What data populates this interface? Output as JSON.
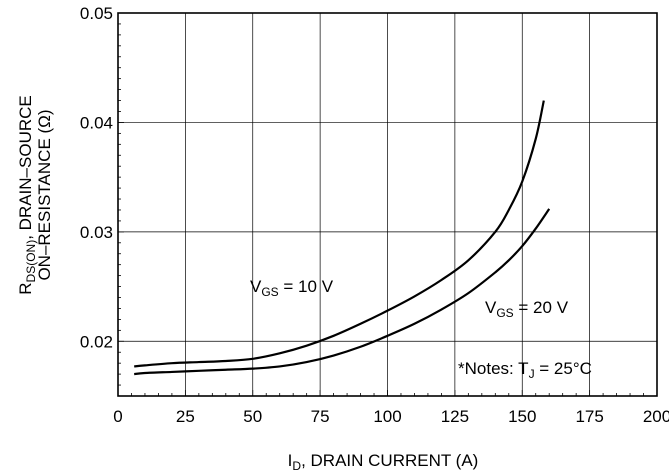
{
  "chart_data": {
    "type": "line",
    "xlabel": {
      "main": "I",
      "sub": "D",
      "rest": ", DRAIN CURRENT (A)"
    },
    "ylabel": {
      "line1_main": "R",
      "line1_sub": "DS(ON)",
      "line1_rest": ", DRAIN–SOURCE",
      "line2": "ON–RESISTANCE (Ω)"
    },
    "xlim": [
      0,
      200
    ],
    "ylim": [
      0.015,
      0.05
    ],
    "x_ticks": [
      "0",
      "25",
      "50",
      "75",
      "100",
      "125",
      "150",
      "175",
      "200"
    ],
    "y_ticks": [
      "0.02",
      "0.03",
      "0.04",
      "0.05"
    ],
    "grid": true,
    "series": [
      {
        "name": {
          "main": "V",
          "sub": "GS",
          "rest": " = 10 V"
        },
        "x": [
          6,
          10,
          20,
          30,
          40,
          50,
          60,
          70,
          80,
          90,
          100,
          110,
          120,
          130,
          140,
          145,
          150,
          155,
          158
        ],
        "y": [
          0.0177,
          0.0178,
          0.018,
          0.0181,
          0.0182,
          0.0184,
          0.0189,
          0.0196,
          0.0205,
          0.0216,
          0.0228,
          0.0241,
          0.0256,
          0.0274,
          0.03,
          0.032,
          0.0346,
          0.0385,
          0.042
        ]
      },
      {
        "name": {
          "main": "V",
          "sub": "GS",
          "rest": " = 20 V"
        },
        "x": [
          6,
          10,
          20,
          30,
          40,
          50,
          60,
          70,
          80,
          90,
          100,
          110,
          120,
          130,
          140,
          145,
          150,
          155,
          160
        ],
        "y": [
          0.017,
          0.0171,
          0.0172,
          0.0173,
          0.0174,
          0.0175,
          0.0177,
          0.0181,
          0.0187,
          0.0195,
          0.0205,
          0.0216,
          0.0229,
          0.0244,
          0.0263,
          0.0274,
          0.0287,
          0.0303,
          0.0321
        ]
      }
    ],
    "note": {
      "prefix": "*Notes: T",
      "sub": "J",
      "rest": " = 25°C"
    }
  }
}
